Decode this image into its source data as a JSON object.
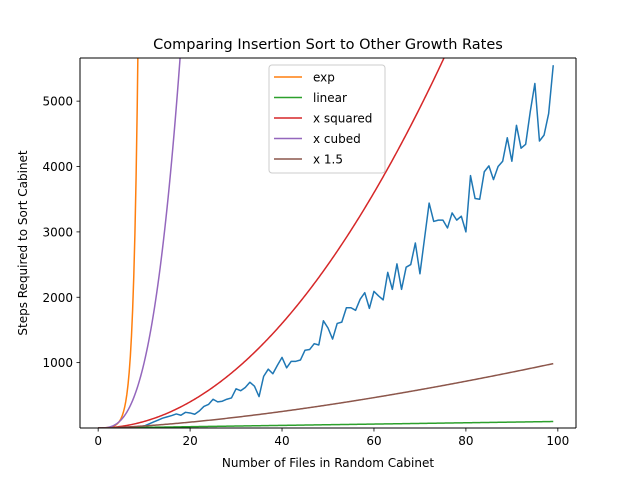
{
  "chart_data": {
    "type": "line",
    "title": "Comparing Insertion Sort to Other Growth Rates",
    "xlabel": "Number of Files in Random Cabinet",
    "ylabel": "Steps Required to Sort Cabinet",
    "xlim": [
      -3.95,
      103.95
    ],
    "ylim": [
      0,
      5660
    ],
    "xticks": [
      0,
      20,
      40,
      60,
      80,
      100
    ],
    "xtick_labels": [
      "0",
      "20",
      "40",
      "60",
      "80",
      "100"
    ],
    "yticks": [
      1000,
      2000,
      3000,
      4000,
      5000
    ],
    "ytick_labels": [
      "1000",
      "2000",
      "3000",
      "4000",
      "5000"
    ],
    "legend_position": "upper center",
    "grid": false,
    "series": [
      {
        "name": "",
        "color": "#1f77b4",
        "points": [
          [
            0,
            0
          ],
          [
            1,
            0
          ],
          [
            2,
            2
          ],
          [
            3,
            4
          ],
          [
            4,
            6
          ],
          [
            5,
            8
          ],
          [
            6,
            10
          ],
          [
            7,
            14
          ],
          [
            8,
            17
          ],
          [
            9,
            22
          ],
          [
            10,
            30
          ],
          [
            11,
            60
          ],
          [
            12,
            90
          ],
          [
            13,
            120
          ],
          [
            14,
            150
          ],
          [
            15,
            170
          ],
          [
            16,
            190
          ],
          [
            17,
            215
          ],
          [
            18,
            195
          ],
          [
            19,
            240
          ],
          [
            20,
            230
          ],
          [
            21,
            210
          ],
          [
            22,
            260
          ],
          [
            23,
            330
          ],
          [
            24,
            360
          ],
          [
            25,
            440
          ],
          [
            26,
            400
          ],
          [
            27,
            410
          ],
          [
            28,
            440
          ],
          [
            29,
            460
          ],
          [
            30,
            600
          ],
          [
            31,
            570
          ],
          [
            32,
            620
          ],
          [
            33,
            700
          ],
          [
            34,
            640
          ],
          [
            35,
            480
          ],
          [
            36,
            790
          ],
          [
            37,
            900
          ],
          [
            38,
            830
          ],
          [
            39,
            960
          ],
          [
            40,
            1080
          ],
          [
            41,
            920
          ],
          [
            42,
            1020
          ],
          [
            43,
            1020
          ],
          [
            44,
            1040
          ],
          [
            45,
            1190
          ],
          [
            46,
            1200
          ],
          [
            47,
            1290
          ],
          [
            48,
            1270
          ],
          [
            49,
            1640
          ],
          [
            50,
            1530
          ],
          [
            51,
            1360
          ],
          [
            52,
            1600
          ],
          [
            53,
            1620
          ],
          [
            54,
            1840
          ],
          [
            55,
            1840
          ],
          [
            56,
            1800
          ],
          [
            57,
            1970
          ],
          [
            58,
            2070
          ],
          [
            59,
            1830
          ],
          [
            60,
            2090
          ],
          [
            61,
            2020
          ],
          [
            62,
            1960
          ],
          [
            63,
            2380
          ],
          [
            64,
            2120
          ],
          [
            65,
            2510
          ],
          [
            66,
            2120
          ],
          [
            67,
            2460
          ],
          [
            68,
            2500
          ],
          [
            69,
            2830
          ],
          [
            70,
            2360
          ],
          [
            71,
            2900
          ],
          [
            72,
            3440
          ],
          [
            73,
            3160
          ],
          [
            74,
            3180
          ],
          [
            75,
            3180
          ],
          [
            76,
            3060
          ],
          [
            77,
            3290
          ],
          [
            78,
            3180
          ],
          [
            79,
            3240
          ],
          [
            80,
            3000
          ],
          [
            81,
            3860
          ],
          [
            82,
            3510
          ],
          [
            83,
            3500
          ],
          [
            84,
            3920
          ],
          [
            85,
            4010
          ],
          [
            86,
            3800
          ],
          [
            87,
            4000
          ],
          [
            88,
            4080
          ],
          [
            89,
            4440
          ],
          [
            90,
            4080
          ],
          [
            91,
            4630
          ],
          [
            92,
            4280
          ],
          [
            93,
            4340
          ],
          [
            94,
            4840
          ],
          [
            95,
            5270
          ],
          [
            96,
            4390
          ],
          [
            97,
            4480
          ],
          [
            98,
            4810
          ],
          [
            99,
            5550
          ]
        ]
      },
      {
        "name": "exp",
        "color": "#ff7f0e",
        "formula": "exp"
      },
      {
        "name": "linear",
        "color": "#2ca02c",
        "formula": "linear"
      },
      {
        "name": "x squared",
        "color": "#d62728",
        "formula": "x squared"
      },
      {
        "name": "x cubed",
        "color": "#9467bd",
        "formula": "x cubed"
      },
      {
        "name": "x 1.5",
        "color": "#8c564b",
        "formula": "x 1.5"
      }
    ]
  }
}
